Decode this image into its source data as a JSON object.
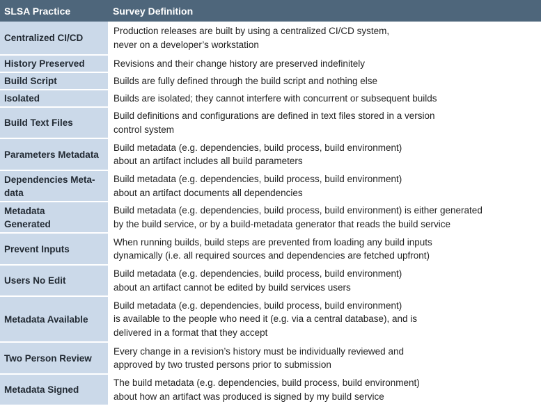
{
  "table": {
    "headers": {
      "practice": "SLSA Practice",
      "definition": "Survey Definition"
    },
    "rows": [
      {
        "practice": "Centralized CI/CD",
        "definition": "Production releases are built by using a centralized CI/CD system,\nnever on a developer’s workstation"
      },
      {
        "practice": "History Preserved",
        "definition": "Revisions and their change history are preserved indefinitely"
      },
      {
        "practice": "Build Script",
        "definition": "Builds are fully defined through the build script and nothing else"
      },
      {
        "practice": "Isolated",
        "definition": "Builds are isolated; they cannot interfere with concurrent or subsequent builds"
      },
      {
        "practice": "Build Text Files",
        "definition": "Build definitions and configurations are defined in text files stored in a version\ncontrol system"
      },
      {
        "practice": "Parameters Metadata",
        "definition": "Build metadata (e.g. dependencies, build process, build environment)\nabout an artifact includes all build parameters"
      },
      {
        "practice": "Dependencies Meta-\ndata",
        "definition": "Build metadata (e.g. dependencies, build process, build environment)\nabout an artifact documents all dependencies"
      },
      {
        "practice": "Metadata\nGenerated",
        "definition": "Build metadata (e.g. dependencies, build process, build environment) is either generated\nby the build service, or by a build-metadata generator that reads the build service"
      },
      {
        "practice": "Prevent Inputs",
        "definition": "When running builds, build steps are prevented from loading any build inputs\ndynamically (i.e. all required sources and dependencies are fetched upfront)"
      },
      {
        "practice": "Users No Edit",
        "definition": "Build metadata (e.g. dependencies, build process, build environment)\nabout an artifact cannot be edited by build services users"
      },
      {
        "practice": "Metadata Available",
        "definition": "Build metadata (e.g. dependencies, build process, build environment)\nis available to the people who need it (e.g. via a central database), and is\ndelivered in a format that they accept"
      },
      {
        "practice": "Two Person Review",
        "definition": "Every change in a revision’s history must be individually reviewed and\napproved by two trusted persons prior to submission"
      },
      {
        "practice": "Metadata Signed",
        "definition": "The build metadata (e.g. dependencies, build process, build environment)\nabout how an artifact was produced is signed by my build service"
      }
    ]
  }
}
